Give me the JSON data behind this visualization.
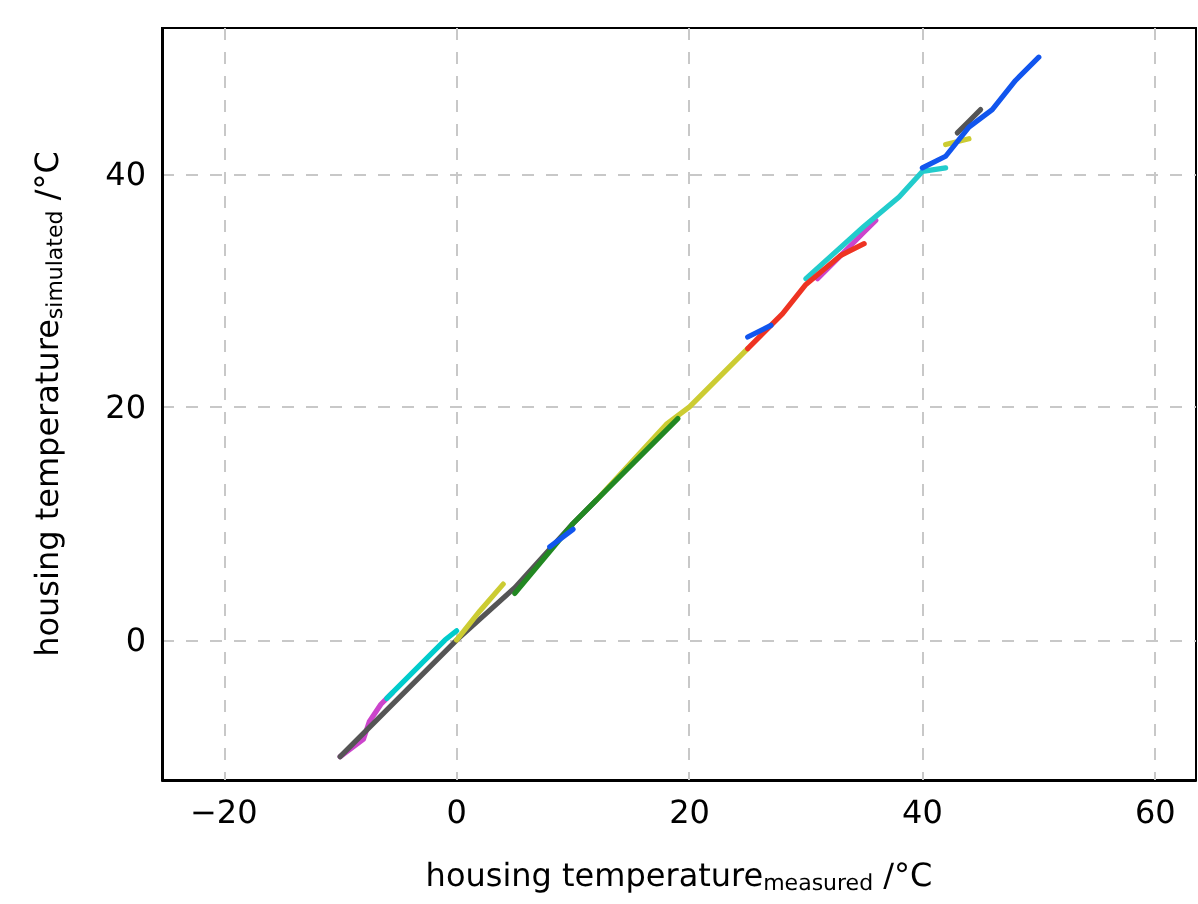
{
  "chart_data": {
    "type": "line",
    "xlabel": "housing temperature$_{measured}$ /°C",
    "ylabel": "housing temperature$_{simulated}$ /°C",
    "xlim": [
      -25.3,
      63.5
    ],
    "ylim": [
      -12,
      52.5
    ],
    "xticks": [
      -20,
      0,
      20,
      40,
      60
    ],
    "yticks": [
      0,
      20,
      40
    ],
    "grid": true,
    "marker": "none",
    "line_style": "solid",
    "series": [
      {
        "color": "#cc44cc",
        "x": [
          -10,
          -8,
          -7.5,
          -6.5,
          -5.5
        ],
        "values": [
          -10,
          -8.5,
          -7,
          -5.5,
          -4.5
        ]
      },
      {
        "color": "#cc44cc",
        "x": [
          31,
          33,
          35,
          36
        ],
        "values": [
          31,
          33,
          35,
          36
        ]
      },
      {
        "color": "#555555",
        "x": [
          -10,
          -5,
          0,
          5,
          10,
          12
        ],
        "values": [
          -10,
          -5,
          0,
          4.5,
          10,
          12
        ]
      },
      {
        "color": "#555555",
        "x": [
          43,
          44,
          45
        ],
        "values": [
          43.5,
          44.5,
          45.5
        ]
      },
      {
        "color": "#00cccc",
        "x": [
          -6,
          -3,
          -1,
          0
        ],
        "values": [
          -5,
          -2,
          0,
          0.8
        ]
      },
      {
        "color": "#22cccc",
        "x": [
          30,
          35,
          38,
          40,
          42
        ],
        "values": [
          31,
          35.5,
          38,
          40.2,
          40.5
        ]
      },
      {
        "color": "#cccc33",
        "x": [
          0,
          2,
          4
        ],
        "values": [
          0,
          2.5,
          4.8
        ]
      },
      {
        "color": "#cccc33",
        "x": [
          12,
          18,
          20,
          25
        ],
        "values": [
          12,
          18.5,
          20,
          25
        ]
      },
      {
        "color": "#cccc33",
        "x": [
          42,
          44
        ],
        "values": [
          42.5,
          43
        ]
      },
      {
        "color": "#228822",
        "x": [
          5,
          10,
          15,
          19
        ],
        "values": [
          4,
          10,
          15,
          19
        ]
      },
      {
        "color": "#ee3322",
        "x": [
          25,
          28,
          30,
          33,
          35
        ],
        "values": [
          25,
          28,
          30.5,
          33,
          34
        ]
      },
      {
        "color": "#1155ee",
        "x": [
          8,
          10
        ],
        "values": [
          8,
          9.5
        ]
      },
      {
        "color": "#1155ee",
        "x": [
          25,
          27
        ],
        "values": [
          26,
          27
        ]
      },
      {
        "color": "#1155ee",
        "x": [
          40,
          42,
          44,
          46,
          48,
          50
        ],
        "values": [
          40.5,
          41.5,
          44,
          45.5,
          48,
          50
        ]
      }
    ]
  }
}
